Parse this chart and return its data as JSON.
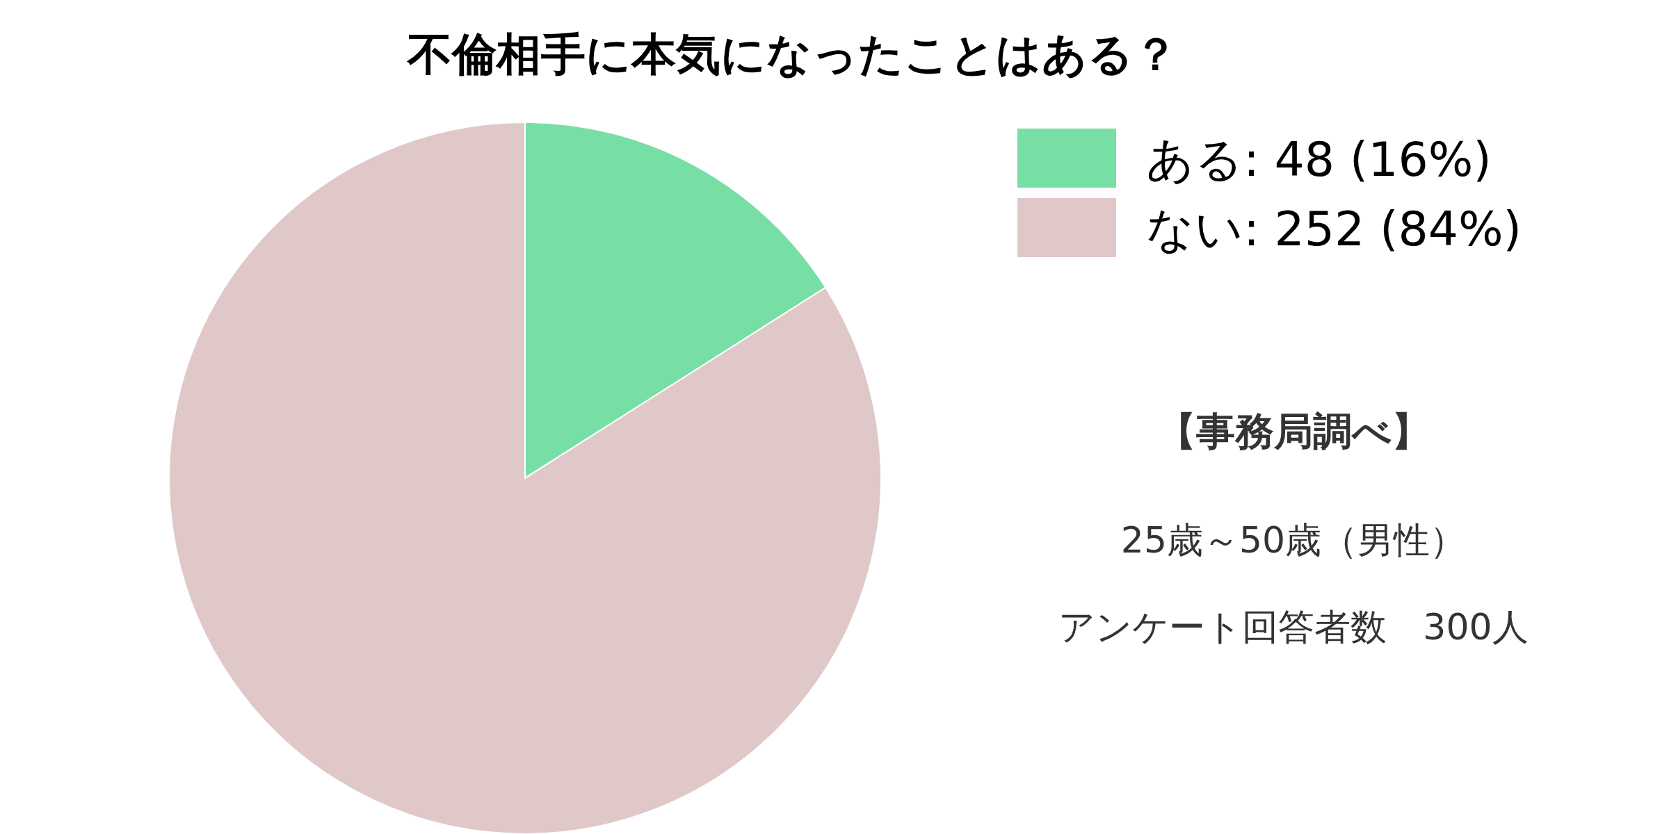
{
  "chart_data": {
    "type": "pie",
    "title": "不倫相手に本気になったことはある？",
    "categories": [
      "ある: 48 (16%)",
      "ない: 252 (84%)"
    ],
    "values": [
      48,
      252
    ],
    "colors": [
      "#77dfa5",
      "#e0c8c9"
    ],
    "legend": "top right",
    "annotations": [
      "【事務局調べ】",
      "25歳～50歳（男性）",
      "アンケート回答者数　300人"
    ]
  }
}
